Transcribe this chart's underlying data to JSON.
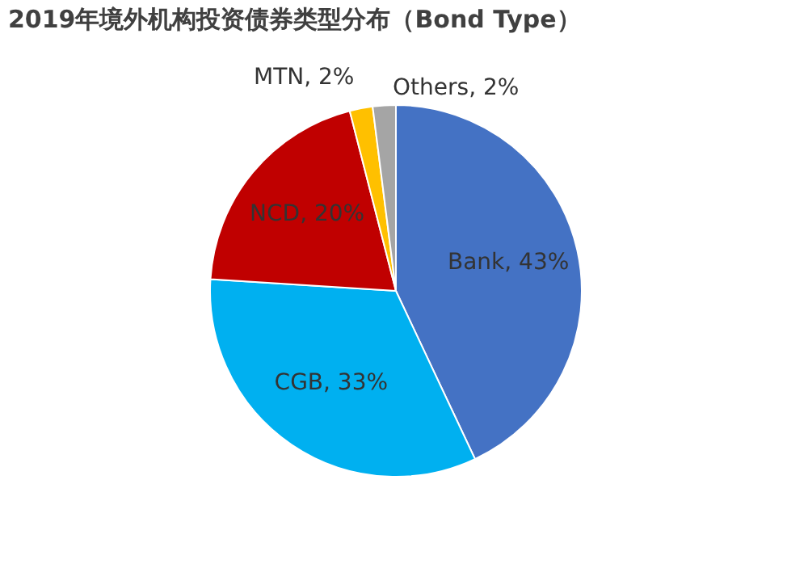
{
  "chart_data": {
    "type": "pie",
    "title": "2019年境外机构投资债券类型分布（Bond Type）",
    "categories": [
      "Bank",
      "CGB",
      "NCD",
      "MTN",
      "Others"
    ],
    "values": [
      43,
      33,
      20,
      2,
      2
    ],
    "value_labels": [
      "43%",
      "33%",
      "20%",
      "2%",
      "2%"
    ],
    "colors": [
      "#4472c4",
      "#00b0f0",
      "#c00000",
      "#ffc000",
      "#a5a5a5"
    ],
    "legend": false
  }
}
